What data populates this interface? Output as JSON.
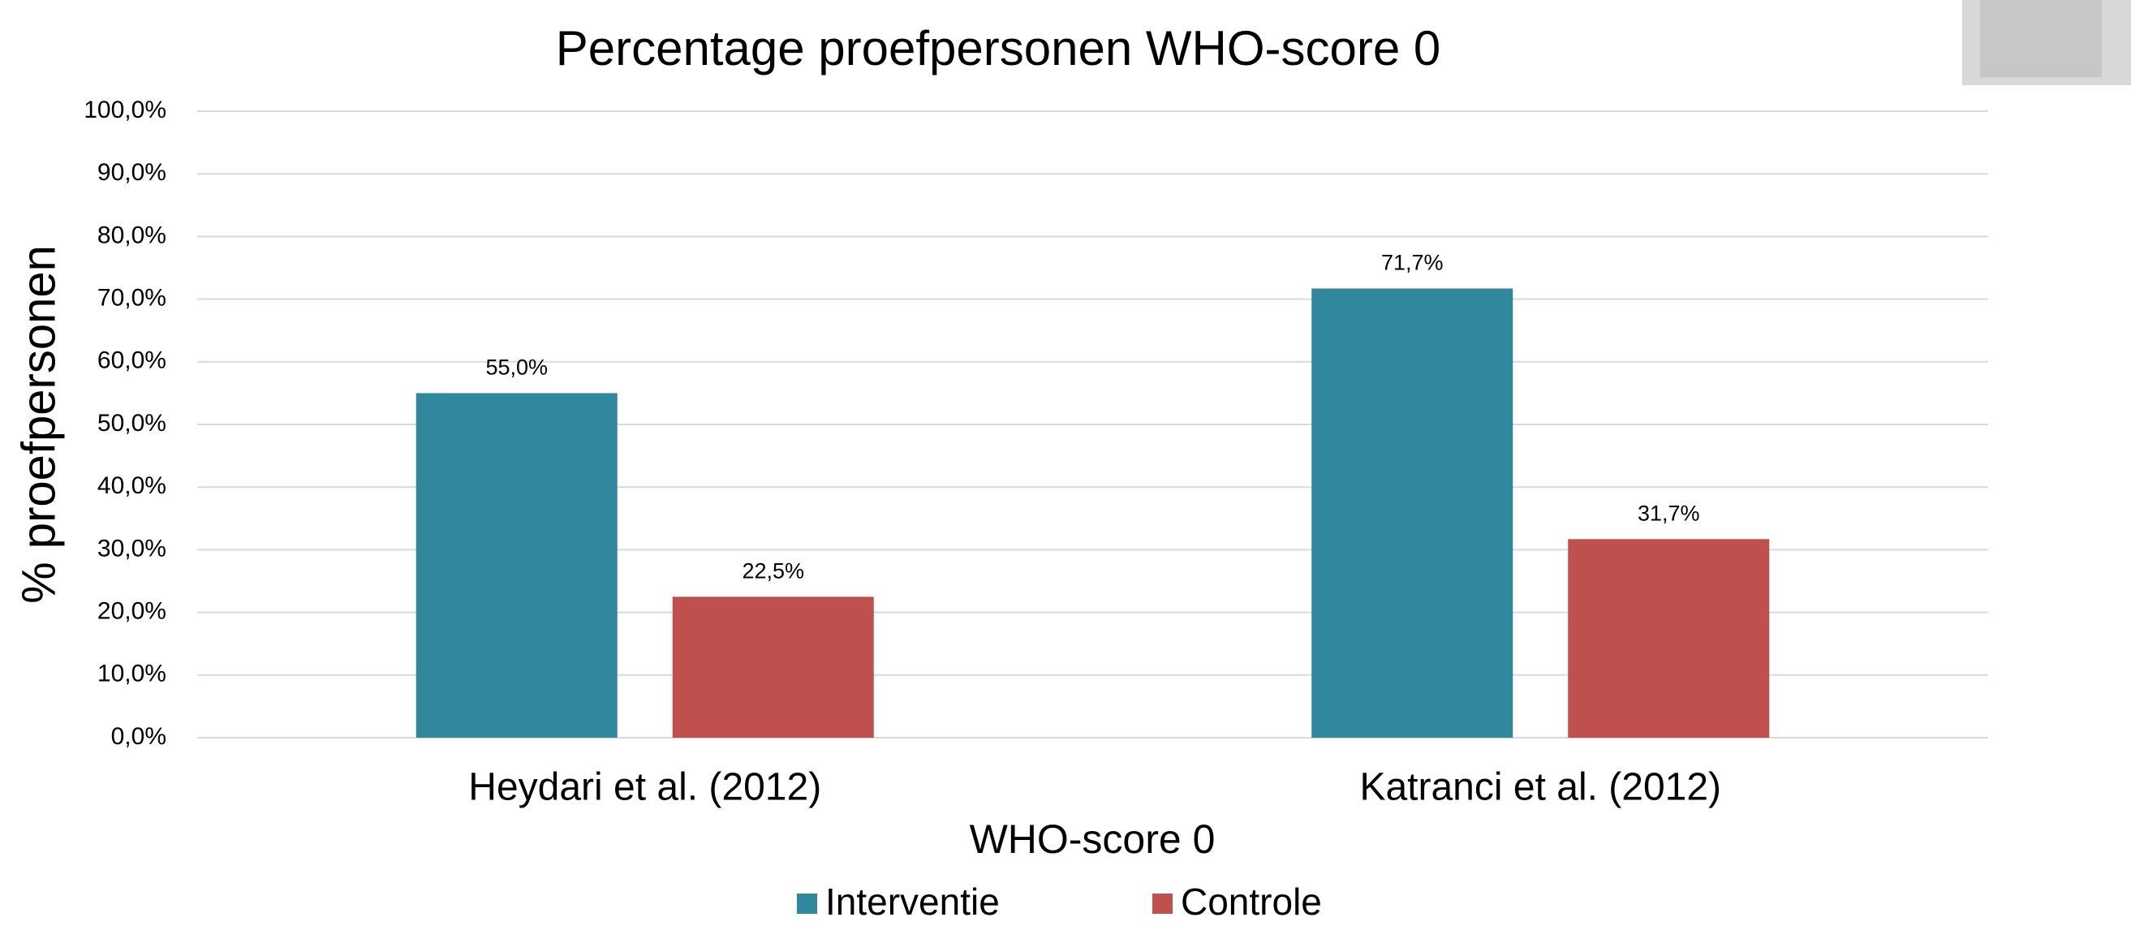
{
  "chart_data": {
    "type": "bar",
    "title": "Percentage proefpersonen WHO-score 0",
    "x_label": "WHO-score 0",
    "y_label": "% proefpersonen",
    "categories": [
      "Heydari et al. (2012)",
      "Katranci et al. (2012)"
    ],
    "series": [
      {
        "name": "Interventie",
        "color": "#31879c",
        "values": [
          55.0,
          71.7
        ],
        "value_labels": [
          "55,0%",
          "71,7%"
        ]
      },
      {
        "name": "Controle",
        "color": "#c0504d",
        "values": [
          22.5,
          31.7
        ],
        "value_labels": [
          "22,5%",
          "31,7%"
        ]
      }
    ],
    "ylim": [
      0,
      100
    ],
    "yticks": [
      {
        "value": 0,
        "label": "0,0%"
      },
      {
        "value": 10,
        "label": "10,0%"
      },
      {
        "value": 20,
        "label": "20,0%"
      },
      {
        "value": 30,
        "label": "30,0%"
      },
      {
        "value": 40,
        "label": "40,0%"
      },
      {
        "value": 50,
        "label": "50,0%"
      },
      {
        "value": 60,
        "label": "60,0%"
      },
      {
        "value": 70,
        "label": "70,0%"
      },
      {
        "value": 80,
        "label": "80,0%"
      },
      {
        "value": 90,
        "label": "90,0%"
      },
      {
        "value": 100,
        "label": "100,0%"
      }
    ],
    "grid": true,
    "legend": "bottom"
  }
}
